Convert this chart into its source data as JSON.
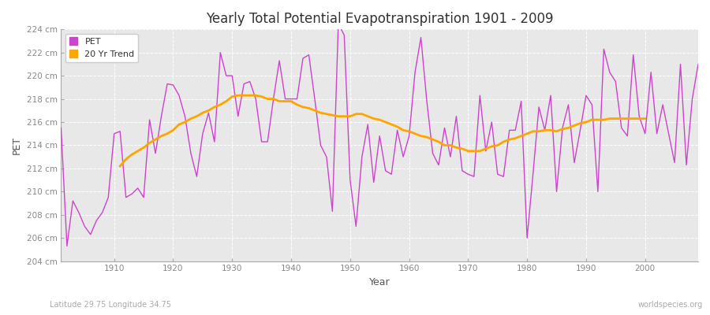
{
  "title": "Yearly Total Potential Evapotranspiration 1901 - 2009",
  "xlabel": "Year",
  "ylabel": "PET",
  "bottom_left_text": "Latitude 29.75 Longitude 34.75",
  "bottom_right_text": "worldspecies.org",
  "bg_color": "#ffffff",
  "plot_bg_color": "#e8e8e8",
  "pet_color": "#cc44cc",
  "trend_color": "#FFA500",
  "ylim": [
    204,
    224
  ],
  "yticks": [
    204,
    206,
    208,
    210,
    212,
    214,
    216,
    218,
    220,
    222,
    224
  ],
  "xticks": [
    1910,
    1920,
    1930,
    1940,
    1950,
    1960,
    1970,
    1980,
    1990,
    2000
  ],
  "years": [
    1901,
    1902,
    1903,
    1904,
    1905,
    1906,
    1907,
    1908,
    1909,
    1910,
    1911,
    1912,
    1913,
    1914,
    1915,
    1916,
    1917,
    1918,
    1919,
    1920,
    1921,
    1922,
    1923,
    1924,
    1925,
    1926,
    1927,
    1928,
    1929,
    1930,
    1931,
    1932,
    1933,
    1934,
    1935,
    1936,
    1937,
    1938,
    1939,
    1940,
    1941,
    1942,
    1943,
    1944,
    1945,
    1946,
    1947,
    1948,
    1949,
    1950,
    1951,
    1952,
    1953,
    1954,
    1955,
    1956,
    1957,
    1958,
    1959,
    1960,
    1961,
    1962,
    1963,
    1964,
    1965,
    1966,
    1967,
    1968,
    1969,
    1970,
    1971,
    1972,
    1973,
    1974,
    1975,
    1976,
    1977,
    1978,
    1979,
    1980,
    1981,
    1982,
    1983,
    1984,
    1985,
    1986,
    1987,
    1988,
    1989,
    1990,
    1991,
    1992,
    1993,
    1994,
    1995,
    1996,
    1997,
    1998,
    1999,
    2000,
    2001,
    2002,
    2003,
    2004,
    2005,
    2006,
    2007,
    2008,
    2009
  ],
  "pet_values": [
    215.5,
    205.3,
    209.2,
    208.2,
    207.0,
    206.3,
    207.5,
    208.2,
    209.5,
    215.0,
    215.2,
    209.5,
    209.8,
    210.3,
    209.5,
    216.2,
    213.3,
    216.5,
    219.3,
    219.2,
    218.3,
    216.5,
    213.3,
    211.3,
    215.0,
    216.8,
    214.3,
    222.0,
    220.0,
    220.0,
    216.5,
    219.3,
    219.5,
    218.0,
    214.3,
    214.3,
    218.0,
    221.3,
    218.0,
    218.0,
    218.0,
    221.5,
    221.8,
    218.0,
    214.0,
    213.0,
    208.3,
    224.5,
    223.5,
    211.0,
    207.0,
    213.0,
    215.8,
    210.8,
    214.8,
    211.8,
    211.5,
    215.3,
    213.0,
    214.8,
    220.3,
    223.3,
    217.8,
    213.3,
    212.3,
    215.5,
    213.0,
    216.5,
    211.8,
    211.5,
    211.3,
    218.3,
    213.5,
    216.0,
    211.5,
    211.3,
    215.3,
    215.3,
    217.8,
    206.0,
    211.5,
    217.3,
    215.3,
    218.3,
    210.0,
    215.5,
    217.5,
    212.5,
    215.3,
    218.3,
    217.5,
    210.0,
    222.3,
    220.3,
    219.5,
    215.5,
    214.8,
    221.8,
    216.5,
    215.0,
    220.3,
    215.0,
    217.5,
    215.0,
    212.5,
    221.0,
    212.3,
    218.0,
    221.0
  ],
  "trend_years": [
    1911,
    1912,
    1913,
    1914,
    1915,
    1916,
    1917,
    1918,
    1919,
    1920,
    1921,
    1922,
    1923,
    1924,
    1925,
    1926,
    1927,
    1928,
    1929,
    1930,
    1931,
    1932,
    1933,
    1934,
    1935,
    1936,
    1937,
    1938,
    1939,
    1940,
    1941,
    1942,
    1943,
    1944,
    1945,
    1946,
    1947,
    1948,
    1949,
    1950,
    1951,
    1952,
    1953,
    1954,
    1955,
    1956,
    1957,
    1958,
    1959,
    1960,
    1961,
    1962,
    1963,
    1964,
    1965,
    1966,
    1967,
    1968,
    1969,
    1970,
    1971,
    1972,
    1973,
    1974,
    1975,
    1976,
    1977,
    1978,
    1979,
    1980,
    1981,
    1982,
    1983,
    1984,
    1985,
    1986,
    1987,
    1988,
    1989,
    1990,
    1991,
    1992,
    1993,
    1994,
    1995,
    1996,
    1997,
    1998,
    1999,
    2000
  ],
  "trend_values": [
    212.2,
    212.8,
    213.2,
    213.5,
    213.8,
    214.2,
    214.5,
    214.8,
    215.0,
    215.3,
    215.8,
    216.0,
    216.3,
    216.5,
    216.8,
    217.0,
    217.3,
    217.5,
    217.8,
    218.2,
    218.3,
    218.3,
    218.3,
    218.3,
    218.2,
    218.0,
    218.0,
    217.8,
    217.8,
    217.8,
    217.5,
    217.3,
    217.2,
    217.0,
    216.8,
    216.7,
    216.6,
    216.5,
    216.5,
    216.5,
    216.7,
    216.7,
    216.5,
    216.3,
    216.2,
    216.0,
    215.8,
    215.6,
    215.3,
    215.2,
    215.0,
    214.8,
    214.7,
    214.5,
    214.3,
    214.0,
    214.0,
    213.8,
    213.7,
    213.5,
    213.5,
    213.5,
    213.7,
    213.9,
    214.0,
    214.3,
    214.5,
    214.6,
    214.8,
    215.0,
    215.2,
    215.2,
    215.3,
    215.3,
    215.2,
    215.4,
    215.5,
    215.7,
    215.9,
    216.0,
    216.2,
    216.2,
    216.2,
    216.3,
    216.3,
    216.3,
    216.3,
    216.3,
    216.3,
    216.3
  ]
}
